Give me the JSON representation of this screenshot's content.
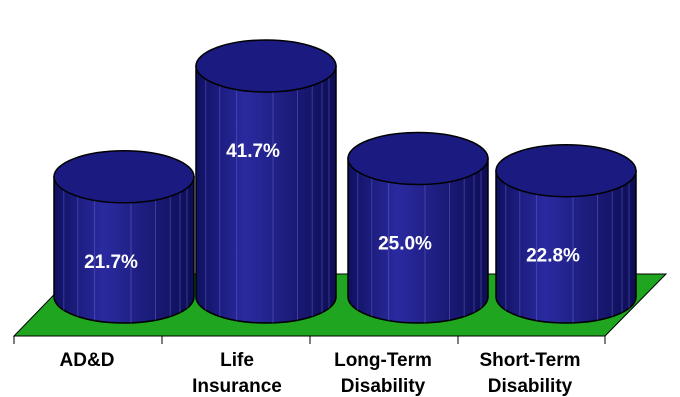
{
  "chart_data": {
    "type": "bar",
    "style": "3d-cylinder",
    "categories": [
      [
        "AD&D"
      ],
      [
        "Life",
        "Insurance"
      ],
      [
        "Long-Term",
        "Disability"
      ],
      [
        "Short-Term",
        "Disability"
      ]
    ],
    "values": [
      21.7,
      41.7,
      25.0,
      22.8
    ],
    "data_labels": [
      "21.7%",
      "41.7%",
      "25.0%",
      "22.8%"
    ],
    "ylim": [
      0,
      45
    ],
    "grid": false,
    "legend": "none",
    "colors": {
      "bar": "#1a1a80",
      "bar_outline": "#000000",
      "floor": "#1fa51f"
    }
  }
}
